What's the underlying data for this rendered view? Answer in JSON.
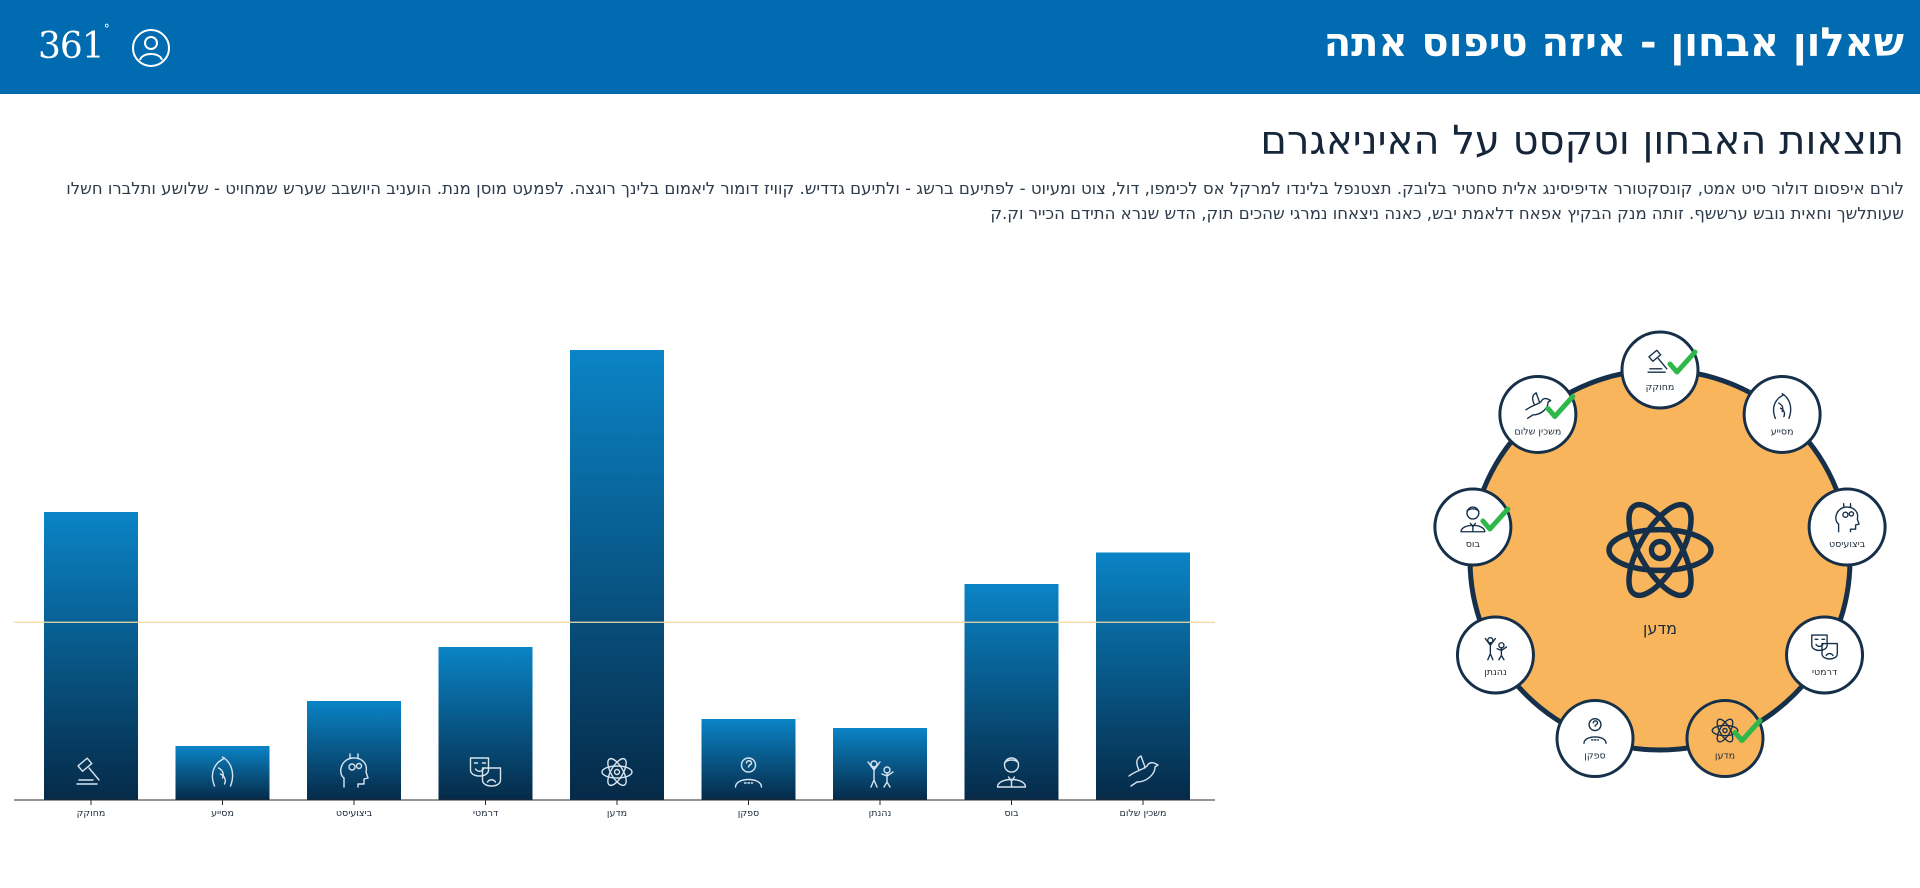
{
  "header": {
    "title": "שאלון אבחון - איזה טיפוס אתה",
    "logo_text": "361",
    "logo_degree": "°",
    "user_icon": "user-icon"
  },
  "content": {
    "title": "תוצאות האבחון וטקסט על האיניאגרם",
    "paragraph": "לורם איפסום דולור סיט אמט, קונסקטורר אדיפיסינג אלית סחטיר בלובק. תצטנפל בלינדו למרקל אס לכימפו, דול, צוט ומעיוט - לפתיעם ברשג - ולתיעם גדדיש. קוויז דומור ליאמום בלינך רוגצה. לפמעט מוסן מנת. הועניב היושבב שערש שמחויט - שלושע ותלברו חשלו שעותלשך וחאית נובש ערששף. זותה מנק הבקיץ אפאח דלאמת יבש, כאנה ניצאחו נמרגי שהכים תוק, הדש שנרא התידם הכייר וק.ק"
  },
  "colors": {
    "header_bg": "#006bb0",
    "bar_top": "#0a84c6",
    "bar_bottom": "#062a48",
    "reference_line": "#f0d9a0",
    "circle_fill": "#f8b55c",
    "circle_border": "#16304a",
    "check": "#2fb84a"
  },
  "chart_data": {
    "type": "bar",
    "categories": [
      "מחוקק",
      "מסייע",
      "ביצועיסט",
      "דרמטי",
      "מדען",
      "ספקן",
      "נהנתן",
      "בוס",
      "משכין שלום"
    ],
    "icons": [
      "gavel-icon",
      "hands-icon",
      "head-gears-icon",
      "masks-icon",
      "atom-icon",
      "question-person-icon",
      "party-icon",
      "boss-icon",
      "dove-icon"
    ],
    "values": [
      64,
      12,
      22,
      34,
      100,
      18,
      16,
      48,
      55
    ],
    "reference_line": 39.5,
    "ylim": [
      0,
      100
    ],
    "title": "",
    "xlabel": "",
    "ylabel": ""
  },
  "enneagram": {
    "center_label": "מדען",
    "center_icon": "atom-icon",
    "nodes": [
      {
        "label": "מחוקק",
        "icon": "gavel-icon",
        "checked": true,
        "active": false
      },
      {
        "label": "מסייע",
        "icon": "hands-icon",
        "checked": false,
        "active": false
      },
      {
        "label": "ביצועיסט",
        "icon": "head-gears-icon",
        "checked": false,
        "active": false
      },
      {
        "label": "דרמטי",
        "icon": "masks-icon",
        "checked": false,
        "active": false
      },
      {
        "label": "מדען",
        "icon": "atom-icon",
        "checked": true,
        "active": true
      },
      {
        "label": "ספקן",
        "icon": "question-person-icon",
        "checked": false,
        "active": false
      },
      {
        "label": "נהנתן",
        "icon": "party-icon",
        "checked": false,
        "active": false
      },
      {
        "label": "בוס",
        "icon": "boss-icon",
        "checked": true,
        "active": false
      },
      {
        "label": "משכין שלום",
        "icon": "dove-icon",
        "checked": true,
        "active": false
      }
    ]
  }
}
